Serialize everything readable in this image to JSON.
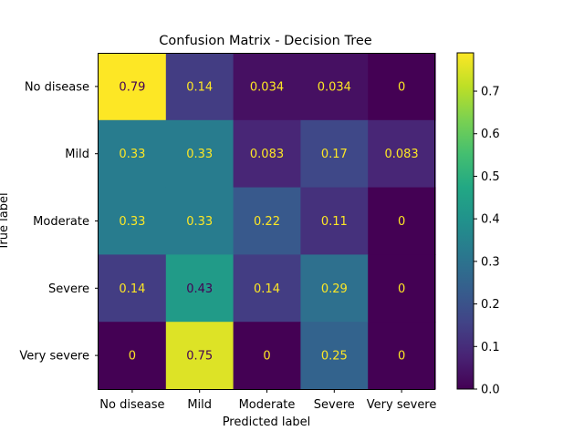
{
  "chart_data": {
    "type": "heatmap",
    "title": "Confusion Matrix - Decision Tree",
    "xlabel": "Predicted label",
    "ylabel": "True label",
    "x_categories": [
      "No disease",
      "Mild",
      "Moderate",
      "Severe",
      "Very severe"
    ],
    "y_categories": [
      "No disease",
      "Mild",
      "Moderate",
      "Severe",
      "Very severe"
    ],
    "values": [
      [
        0.79,
        0.14,
        0.034,
        0.034,
        0
      ],
      [
        0.33,
        0.33,
        0.083,
        0.17,
        0.083
      ],
      [
        0.33,
        0.33,
        0.22,
        0.11,
        0
      ],
      [
        0.14,
        0.43,
        0.14,
        0.29,
        0
      ],
      [
        0,
        0.75,
        0,
        0.25,
        0
      ]
    ],
    "value_labels": [
      [
        "0.79",
        "0.14",
        "0.034",
        "0.034",
        "0"
      ],
      [
        "0.33",
        "0.33",
        "0.083",
        "0.17",
        "0.083"
      ],
      [
        "0.33",
        "0.33",
        "0.22",
        "0.11",
        "0"
      ],
      [
        "0.14",
        "0.43",
        "0.14",
        "0.29",
        "0"
      ],
      [
        "0",
        "0.75",
        "0",
        "0.25",
        "0"
      ]
    ],
    "colorbar": {
      "colormap": "viridis",
      "range": [
        0,
        0.79
      ],
      "ticks": [
        0.0,
        0.1,
        0.2,
        0.3,
        0.4,
        0.5,
        0.6,
        0.7
      ],
      "tick_labels": [
        "0.0",
        "0.1",
        "0.2",
        "0.3",
        "0.4",
        "0.5",
        "0.6",
        "0.7"
      ]
    },
    "text_colors": {
      "on_dark": "#fde725",
      "on_light": "#440154"
    }
  }
}
